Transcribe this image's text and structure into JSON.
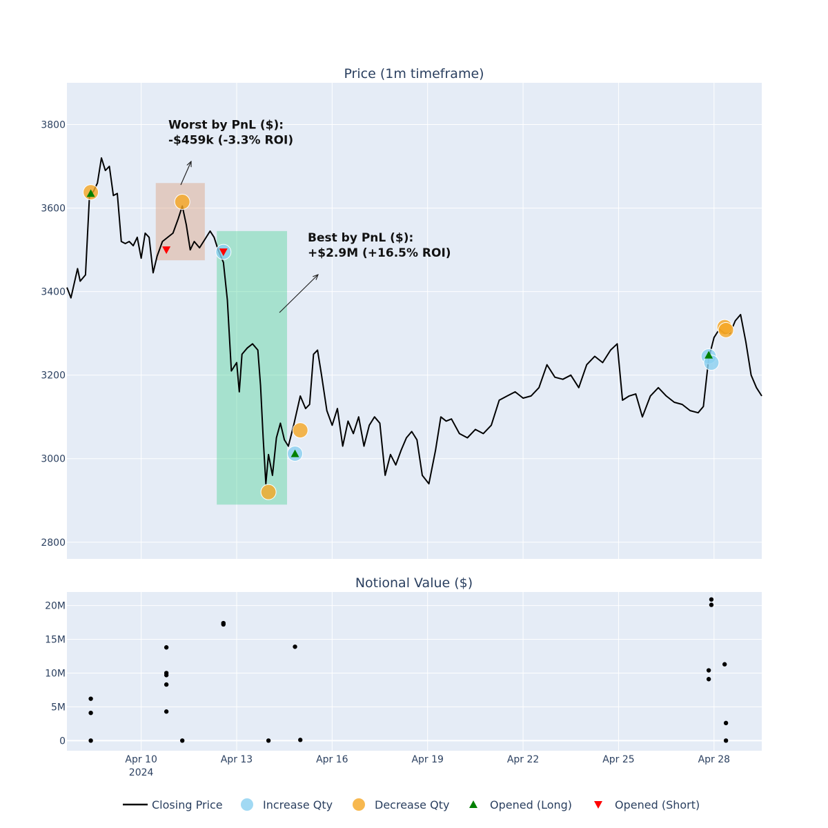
{
  "chart_data": [
    {
      "type": "line",
      "title": "Price (1m timeframe)",
      "x_range": [
        "2024-04-07T16:00",
        "2024-04-29T12:00"
      ],
      "ylim": [
        2760,
        3900
      ],
      "y_ticks": [
        2800,
        3000,
        3200,
        3400,
        3600,
        3800
      ],
      "x_ticks": [
        {
          "date": "2024-04-10T00:00",
          "label": "Apr 10",
          "sublabel": "2024"
        },
        {
          "date": "2024-04-13T00:00",
          "label": "Apr 13",
          "sublabel": ""
        },
        {
          "date": "2024-04-16T00:00",
          "label": "Apr 16",
          "sublabel": ""
        },
        {
          "date": "2024-04-19T00:00",
          "label": "Apr 19",
          "sublabel": ""
        },
        {
          "date": "2024-04-22T00:00",
          "label": "Apr 22",
          "sublabel": ""
        },
        {
          "date": "2024-04-25T00:00",
          "label": "Apr 25",
          "sublabel": ""
        },
        {
          "date": "2024-04-28T00:00",
          "label": "Apr 28",
          "sublabel": ""
        }
      ],
      "grid": true,
      "series": [
        {
          "name": "Closing Price",
          "color": "#000000",
          "points": [
            [
              "2024-04-07T16:00",
              3410
            ],
            [
              "2024-04-07T19:00",
              3385
            ],
            [
              "2024-04-08T00:00",
              3455
            ],
            [
              "2024-04-08T02:00",
              3425
            ],
            [
              "2024-04-08T06:00",
              3440
            ],
            [
              "2024-04-08T09:00",
              3630
            ],
            [
              "2024-04-08T12:00",
              3640
            ],
            [
              "2024-04-08T15:00",
              3660
            ],
            [
              "2024-04-08T18:00",
              3720
            ],
            [
              "2024-04-08T21:00",
              3690
            ],
            [
              "2024-04-09T00:00",
              3700
            ],
            [
              "2024-04-09T03:00",
              3630
            ],
            [
              "2024-04-09T06:00",
              3635
            ],
            [
              "2024-04-09T09:00",
              3520
            ],
            [
              "2024-04-09T12:00",
              3515
            ],
            [
              "2024-04-09T15:00",
              3520
            ],
            [
              "2024-04-09T18:00",
              3510
            ],
            [
              "2024-04-09T21:00",
              3530
            ],
            [
              "2024-04-10T00:00",
              3480
            ],
            [
              "2024-04-10T03:00",
              3540
            ],
            [
              "2024-04-10T06:00",
              3530
            ],
            [
              "2024-04-10T09:00",
              3445
            ],
            [
              "2024-04-10T12:00",
              3485
            ],
            [
              "2024-04-10T16:00",
              3520
            ],
            [
              "2024-04-10T20:00",
              3530
            ],
            [
              "2024-04-11T00:00",
              3540
            ],
            [
              "2024-04-11T04:00",
              3575
            ],
            [
              "2024-04-11T07:00",
              3605
            ],
            [
              "2024-04-11T10:00",
              3560
            ],
            [
              "2024-04-11T13:00",
              3500
            ],
            [
              "2024-04-11T16:00",
              3520
            ],
            [
              "2024-04-11T20:00",
              3505
            ],
            [
              "2024-04-12T00:00",
              3525
            ],
            [
              "2024-04-12T04:00",
              3545
            ],
            [
              "2024-04-12T07:00",
              3530
            ],
            [
              "2024-04-12T10:00",
              3500
            ],
            [
              "2024-04-12T14:00",
              3470
            ],
            [
              "2024-04-12T17:00",
              3380
            ],
            [
              "2024-04-12T20:00",
              3210
            ],
            [
              "2024-04-13T00:00",
              3230
            ],
            [
              "2024-04-13T02:00",
              3160
            ],
            [
              "2024-04-13T04:00",
              3250
            ],
            [
              "2024-04-13T08:00",
              3265
            ],
            [
              "2024-04-13T12:00",
              3275
            ],
            [
              "2024-04-13T16:00",
              3260
            ],
            [
              "2024-04-13T18:00",
              3175
            ],
            [
              "2024-04-13T20:00",
              3050
            ],
            [
              "2024-04-13T22:00",
              2940
            ],
            [
              "2024-04-14T00:00",
              3010
            ],
            [
              "2024-04-14T03:00",
              2960
            ],
            [
              "2024-04-14T06:00",
              3050
            ],
            [
              "2024-04-14T09:00",
              3085
            ],
            [
              "2024-04-14T12:00",
              3045
            ],
            [
              "2024-04-14T15:00",
              3030
            ],
            [
              "2024-04-14T19:00",
              3080
            ],
            [
              "2024-04-15T00:00",
              3150
            ],
            [
              "2024-04-15T04:00",
              3120
            ],
            [
              "2024-04-15T07:00",
              3130
            ],
            [
              "2024-04-15T10:00",
              3250
            ],
            [
              "2024-04-15T13:00",
              3260
            ],
            [
              "2024-04-15T16:00",
              3200
            ],
            [
              "2024-04-15T20:00",
              3115
            ],
            [
              "2024-04-16T00:00",
              3080
            ],
            [
              "2024-04-16T04:00",
              3120
            ],
            [
              "2024-04-16T08:00",
              3030
            ],
            [
              "2024-04-16T12:00",
              3090
            ],
            [
              "2024-04-16T16:00",
              3060
            ],
            [
              "2024-04-16T20:00",
              3100
            ],
            [
              "2024-04-17T00:00",
              3030
            ],
            [
              "2024-04-17T04:00",
              3080
            ],
            [
              "2024-04-17T08:00",
              3100
            ],
            [
              "2024-04-17T12:00",
              3085
            ],
            [
              "2024-04-17T16:00",
              2960
            ],
            [
              "2024-04-17T20:00",
              3010
            ],
            [
              "2024-04-18T00:00",
              2985
            ],
            [
              "2024-04-18T04:00",
              3020
            ],
            [
              "2024-04-18T08:00",
              3050
            ],
            [
              "2024-04-18T12:00",
              3065
            ],
            [
              "2024-04-18T16:00",
              3045
            ],
            [
              "2024-04-18T20:00",
              2960
            ],
            [
              "2024-04-19T01:00",
              2940
            ],
            [
              "2024-04-19T06:00",
              3020
            ],
            [
              "2024-04-19T10:00",
              3100
            ],
            [
              "2024-04-19T14:00",
              3090
            ],
            [
              "2024-04-19T18:00",
              3095
            ],
            [
              "2024-04-20T00:00",
              3060
            ],
            [
              "2024-04-20T06:00",
              3050
            ],
            [
              "2024-04-20T12:00",
              3070
            ],
            [
              "2024-04-20T18:00",
              3060
            ],
            [
              "2024-04-21T00:00",
              3080
            ],
            [
              "2024-04-21T06:00",
              3140
            ],
            [
              "2024-04-21T12:00",
              3150
            ],
            [
              "2024-04-21T18:00",
              3160
            ],
            [
              "2024-04-22T00:00",
              3145
            ],
            [
              "2024-04-22T06:00",
              3150
            ],
            [
              "2024-04-22T12:00",
              3170
            ],
            [
              "2024-04-22T18:00",
              3225
            ],
            [
              "2024-04-23T00:00",
              3195
            ],
            [
              "2024-04-23T06:00",
              3190
            ],
            [
              "2024-04-23T12:00",
              3200
            ],
            [
              "2024-04-23T18:00",
              3170
            ],
            [
              "2024-04-24T00:00",
              3225
            ],
            [
              "2024-04-24T06:00",
              3245
            ],
            [
              "2024-04-24T12:00",
              3230
            ],
            [
              "2024-04-24T18:00",
              3260
            ],
            [
              "2024-04-24T23:00",
              3275
            ],
            [
              "2024-04-25T03:00",
              3140
            ],
            [
              "2024-04-25T08:00",
              3150
            ],
            [
              "2024-04-25T13:00",
              3155
            ],
            [
              "2024-04-25T18:00",
              3100
            ],
            [
              "2024-04-26T00:00",
              3150
            ],
            [
              "2024-04-26T06:00",
              3170
            ],
            [
              "2024-04-26T12:00",
              3150
            ],
            [
              "2024-04-26T18:00",
              3135
            ],
            [
              "2024-04-27T00:00",
              3130
            ],
            [
              "2024-04-27T06:00",
              3115
            ],
            [
              "2024-04-27T12:00",
              3110
            ],
            [
              "2024-04-27T16:00",
              3125
            ],
            [
              "2024-04-27T20:00",
              3240
            ],
            [
              "2024-04-28T00:00",
              3290
            ],
            [
              "2024-04-28T04:00",
              3310
            ],
            [
              "2024-04-28T08:00",
              3300
            ],
            [
              "2024-04-28T12:00",
              3300
            ],
            [
              "2024-04-28T16:00",
              3330
            ],
            [
              "2024-04-28T20:00",
              3345
            ],
            [
              "2024-04-29T00:00",
              3280
            ],
            [
              "2024-04-29T04:00",
              3200
            ],
            [
              "2024-04-29T08:00",
              3170
            ],
            [
              "2024-04-29T12:00",
              3150
            ]
          ]
        },
        {
          "name": "Increase Qty",
          "color": "#89cff0",
          "points": [
            [
              "2024-04-12T14:00",
              3495
            ],
            [
              "2024-04-14T20:00",
              3012
            ],
            [
              "2024-04-27T20:00",
              3245
            ],
            [
              "2024-04-27T22:00",
              3230
            ]
          ]
        },
        {
          "name": "Decrease Qty",
          "color": "#f5a623",
          "points": [
            [
              "2024-04-08T10:00",
              3638
            ],
            [
              "2024-04-11T07:00",
              3615
            ],
            [
              "2024-04-14T00:00",
              2920
            ],
            [
              "2024-04-15T00:00",
              3068
            ],
            [
              "2024-04-28T08:00",
              3315
            ],
            [
              "2024-04-28T09:00",
              3308
            ]
          ]
        },
        {
          "name": "Opened (Long)",
          "color": "#008000",
          "points": [
            [
              "2024-04-08T10:00",
              3635
            ],
            [
              "2024-04-14T20:00",
              3012
            ],
            [
              "2024-04-27T20:00",
              3248
            ]
          ]
        },
        {
          "name": "Opened (Short)",
          "color": "#ff0000",
          "points": [
            [
              "2024-04-10T19:00",
              3500
            ],
            [
              "2024-04-12T14:00",
              3495
            ]
          ]
        }
      ],
      "regions": [
        {
          "x0": "2024-04-10T11:00",
          "x1": "2024-04-12T00:00",
          "y0": 3475,
          "y1": 3660,
          "color": "#d9966e"
        },
        {
          "x0": "2024-04-12T09:00",
          "x1": "2024-04-14T14:00",
          "y0": 2890,
          "y1": 3545,
          "color": "#3ecf8e"
        }
      ],
      "annotations": [
        {
          "lines": [
            "Worst by PnL ($):",
            "-$459k (-3.3% ROI)"
          ],
          "x": "2024-04-10T19:00",
          "y": 3790
        },
        {
          "lines": [
            "Best by PnL ($):",
            "+$2.9M (+16.5% ROI)"
          ],
          "x": "2024-04-16T00:00",
          "y": 3520
        }
      ],
      "legend": {
        "placement": "bottom",
        "items": [
          {
            "label": "Closing Price",
            "symbol": "line",
            "color": "#000000"
          },
          {
            "label": "Increase Qty",
            "symbol": "circle",
            "color": "#89cff0"
          },
          {
            "label": "Decrease Qty",
            "symbol": "circle",
            "color": "#f5a623"
          },
          {
            "label": "Opened (Long)",
            "symbol": "triangle-up",
            "color": "#008000"
          },
          {
            "label": "Opened (Short)",
            "symbol": "triangle-down",
            "color": "#ff0000"
          }
        ]
      }
    },
    {
      "type": "scatter",
      "title": "Notional Value ($)",
      "ylim": [
        -1500000,
        22000000
      ],
      "y_ticks": [
        {
          "value": 0,
          "label": "0"
        },
        {
          "value": 5000000,
          "label": "5M"
        },
        {
          "value": 10000000,
          "label": "10M"
        },
        {
          "value": 15000000,
          "label": "15M"
        },
        {
          "value": 20000000,
          "label": "20M"
        }
      ],
      "grid": true,
      "series": [
        {
          "name": "",
          "color": "#000000",
          "points": [
            [
              "2024-04-08T10:00",
              6200000
            ],
            [
              "2024-04-08T10:00",
              4100000
            ],
            [
              "2024-04-08T10:00",
              0
            ],
            [
              "2024-04-10T19:00",
              13800000
            ],
            [
              "2024-04-10T19:00",
              10000000
            ],
            [
              "2024-04-10T19:00",
              9700000
            ],
            [
              "2024-04-10T19:00",
              8300000
            ],
            [
              "2024-04-10T19:00",
              4300000
            ],
            [
              "2024-04-11T07:00",
              0
            ],
            [
              "2024-04-12T14:00",
              17400000
            ],
            [
              "2024-04-12T14:00",
              17200000
            ],
            [
              "2024-04-14T00:00",
              0
            ],
            [
              "2024-04-14T20:00",
              13900000
            ],
            [
              "2024-04-15T00:00",
              100000
            ],
            [
              "2024-04-27T20:00",
              10400000
            ],
            [
              "2024-04-27T20:00",
              9100000
            ],
            [
              "2024-04-27T22:00",
              20900000
            ],
            [
              "2024-04-27T22:00",
              20100000
            ],
            [
              "2024-04-28T08:00",
              11300000
            ],
            [
              "2024-04-28T09:00",
              2600000
            ],
            [
              "2024-04-28T09:00",
              0
            ]
          ]
        }
      ]
    }
  ]
}
